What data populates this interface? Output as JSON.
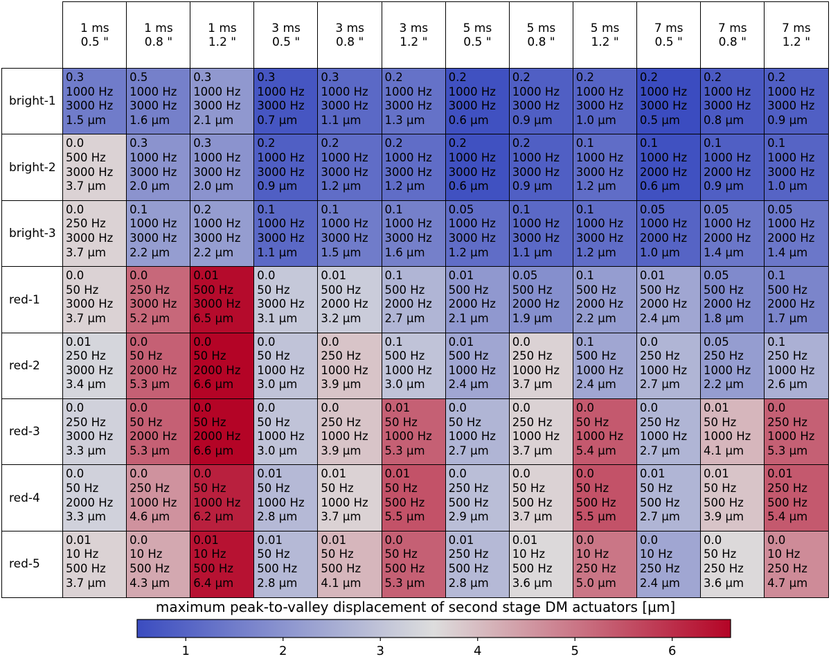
{
  "colormap": {
    "name": "coolwarm",
    "vmin": 0.5,
    "vmax": 6.6,
    "stops": [
      "#3b4cc0",
      "#dddddd",
      "#b40426"
    ]
  },
  "chart_data": {
    "type": "heatmap",
    "title": "",
    "columns": [
      {
        "exp": "1 ms",
        "seeing": "0.5 \""
      },
      {
        "exp": "1 ms",
        "seeing": "0.8 \""
      },
      {
        "exp": "1 ms",
        "seeing": "1.2 \""
      },
      {
        "exp": "3 ms",
        "seeing": "0.5 \""
      },
      {
        "exp": "3 ms",
        "seeing": "0.8 \""
      },
      {
        "exp": "3 ms",
        "seeing": "1.2 \""
      },
      {
        "exp": "5 ms",
        "seeing": "0.5 \""
      },
      {
        "exp": "5 ms",
        "seeing": "0.8 \""
      },
      {
        "exp": "5 ms",
        "seeing": "1.2 \""
      },
      {
        "exp": "7 ms",
        "seeing": "0.5 \""
      },
      {
        "exp": "7 ms",
        "seeing": "0.8 \""
      },
      {
        "exp": "7 ms",
        "seeing": "1.2 \""
      }
    ],
    "rows": [
      {
        "label": "bright-1",
        "cells": [
          {
            "gain": "0.3",
            "f1": "1000 Hz",
            "f2": "3000 Hz",
            "value": 1.5
          },
          {
            "gain": "0.5",
            "f1": "1000 Hz",
            "f2": "3000 Hz",
            "value": 1.6
          },
          {
            "gain": "0.3",
            "f1": "1000 Hz",
            "f2": "3000 Hz",
            "value": 2.1
          },
          {
            "gain": "0.3",
            "f1": "1000 Hz",
            "f2": "3000 Hz",
            "value": 0.7
          },
          {
            "gain": "0.3",
            "f1": "1000 Hz",
            "f2": "3000 Hz",
            "value": 1.1
          },
          {
            "gain": "0.2",
            "f1": "1000 Hz",
            "f2": "3000 Hz",
            "value": 1.3
          },
          {
            "gain": "0.2",
            "f1": "1000 Hz",
            "f2": "3000 Hz",
            "value": 0.6
          },
          {
            "gain": "0.2",
            "f1": "1000 Hz",
            "f2": "3000 Hz",
            "value": 0.9
          },
          {
            "gain": "0.2",
            "f1": "1000 Hz",
            "f2": "3000 Hz",
            "value": 1.0
          },
          {
            "gain": "0.2",
            "f1": "1000 Hz",
            "f2": "3000 Hz",
            "value": 0.5
          },
          {
            "gain": "0.2",
            "f1": "1000 Hz",
            "f2": "3000 Hz",
            "value": 0.8
          },
          {
            "gain": "0.2",
            "f1": "1000 Hz",
            "f2": "3000 Hz",
            "value": 0.9
          }
        ]
      },
      {
        "label": "bright-2",
        "cells": [
          {
            "gain": "0.0",
            "f1": "500 Hz",
            "f2": "3000 Hz",
            "value": 3.7
          },
          {
            "gain": "0.3",
            "f1": "1000 Hz",
            "f2": "3000 Hz",
            "value": 2.0
          },
          {
            "gain": "0.3",
            "f1": "1000 Hz",
            "f2": "3000 Hz",
            "value": 2.0
          },
          {
            "gain": "0.2",
            "f1": "1000 Hz",
            "f2": "3000 Hz",
            "value": 0.9
          },
          {
            "gain": "0.2",
            "f1": "1000 Hz",
            "f2": "3000 Hz",
            "value": 1.2
          },
          {
            "gain": "0.2",
            "f1": "1000 Hz",
            "f2": "3000 Hz",
            "value": 1.2
          },
          {
            "gain": "0.2",
            "f1": "1000 Hz",
            "f2": "3000 Hz",
            "value": 0.6
          },
          {
            "gain": "0.2",
            "f1": "1000 Hz",
            "f2": "3000 Hz",
            "value": 0.9
          },
          {
            "gain": "0.1",
            "f1": "1000 Hz",
            "f2": "3000 Hz",
            "value": 1.2
          },
          {
            "gain": "0.1",
            "f1": "1000 Hz",
            "f2": "2000 Hz",
            "value": 0.6
          },
          {
            "gain": "0.1",
            "f1": "1000 Hz",
            "f2": "2000 Hz",
            "value": 0.9
          },
          {
            "gain": "0.1",
            "f1": "1000 Hz",
            "f2": "3000 Hz",
            "value": 1.0
          }
        ]
      },
      {
        "label": "bright-3",
        "cells": [
          {
            "gain": "0.0",
            "f1": "250 Hz",
            "f2": "3000 Hz",
            "value": 3.7
          },
          {
            "gain": "0.1",
            "f1": "1000 Hz",
            "f2": "3000 Hz",
            "value": 2.2
          },
          {
            "gain": "0.2",
            "f1": "1000 Hz",
            "f2": "3000 Hz",
            "value": 2.2
          },
          {
            "gain": "0.1",
            "f1": "1000 Hz",
            "f2": "3000 Hz",
            "value": 1.1
          },
          {
            "gain": "0.1",
            "f1": "1000 Hz",
            "f2": "3000 Hz",
            "value": 1.5
          },
          {
            "gain": "0.1",
            "f1": "1000 Hz",
            "f2": "3000 Hz",
            "value": 1.6
          },
          {
            "gain": "0.05",
            "f1": "1000 Hz",
            "f2": "3000 Hz",
            "value": 1.2
          },
          {
            "gain": "0.1",
            "f1": "1000 Hz",
            "f2": "3000 Hz",
            "value": 1.1
          },
          {
            "gain": "0.1",
            "f1": "1000 Hz",
            "f2": "3000 Hz",
            "value": 1.2
          },
          {
            "gain": "0.05",
            "f1": "1000 Hz",
            "f2": "2000 Hz",
            "value": 1.0
          },
          {
            "gain": "0.05",
            "f1": "1000 Hz",
            "f2": "2000 Hz",
            "value": 1.4
          },
          {
            "gain": "0.05",
            "f1": "1000 Hz",
            "f2": "2000 Hz",
            "value": 1.4
          }
        ]
      },
      {
        "label": "red-1",
        "cells": [
          {
            "gain": "0.0",
            "f1": "50 Hz",
            "f2": "3000 Hz",
            "value": 3.7
          },
          {
            "gain": "0.0",
            "f1": "250 Hz",
            "f2": "3000 Hz",
            "value": 5.2
          },
          {
            "gain": "0.01",
            "f1": "500 Hz",
            "f2": "3000 Hz",
            "value": 6.5
          },
          {
            "gain": "0.0",
            "f1": "50 Hz",
            "f2": "3000 Hz",
            "value": 3.1
          },
          {
            "gain": "0.01",
            "f1": "500 Hz",
            "f2": "2000 Hz",
            "value": 3.2
          },
          {
            "gain": "0.1",
            "f1": "500 Hz",
            "f2": "2000 Hz",
            "value": 2.7
          },
          {
            "gain": "0.01",
            "f1": "500 Hz",
            "f2": "2000 Hz",
            "value": 2.1
          },
          {
            "gain": "0.05",
            "f1": "500 Hz",
            "f2": "2000 Hz",
            "value": 1.9
          },
          {
            "gain": "0.1",
            "f1": "500 Hz",
            "f2": "2000 Hz",
            "value": 2.2
          },
          {
            "gain": "0.01",
            "f1": "500 Hz",
            "f2": "2000 Hz",
            "value": 2.4
          },
          {
            "gain": "0.05",
            "f1": "500 Hz",
            "f2": "2000 Hz",
            "value": 1.8
          },
          {
            "gain": "0.1",
            "f1": "500 Hz",
            "f2": "2000 Hz",
            "value": 1.7
          }
        ]
      },
      {
        "label": "red-2",
        "cells": [
          {
            "gain": "0.01",
            "f1": "250 Hz",
            "f2": "3000 Hz",
            "value": 3.4
          },
          {
            "gain": "0.0",
            "f1": "50 Hz",
            "f2": "2000 Hz",
            "value": 5.3
          },
          {
            "gain": "0.0",
            "f1": "50 Hz",
            "f2": "2000 Hz",
            "value": 6.6
          },
          {
            "gain": "0.0",
            "f1": "50 Hz",
            "f2": "1000 Hz",
            "value": 3.0
          },
          {
            "gain": "0.0",
            "f1": "250 Hz",
            "f2": "1000 Hz",
            "value": 3.9
          },
          {
            "gain": "0.1",
            "f1": "500 Hz",
            "f2": "1000 Hz",
            "value": 3.0
          },
          {
            "gain": "0.01",
            "f1": "500 Hz",
            "f2": "1000 Hz",
            "value": 2.4
          },
          {
            "gain": "0.0",
            "f1": "250 Hz",
            "f2": "1000 Hz",
            "value": 3.7
          },
          {
            "gain": "0.1",
            "f1": "500 Hz",
            "f2": "1000 Hz",
            "value": 2.4
          },
          {
            "gain": "0.0",
            "f1": "250 Hz",
            "f2": "1000 Hz",
            "value": 2.7
          },
          {
            "gain": "0.05",
            "f1": "250 Hz",
            "f2": "1000 Hz",
            "value": 2.2
          },
          {
            "gain": "0.1",
            "f1": "250 Hz",
            "f2": "1000 Hz",
            "value": 2.6
          }
        ]
      },
      {
        "label": "red-3",
        "cells": [
          {
            "gain": "0.0",
            "f1": "250 Hz",
            "f2": "3000 Hz",
            "value": 3.3
          },
          {
            "gain": "0.0",
            "f1": "50 Hz",
            "f2": "2000 Hz",
            "value": 5.3
          },
          {
            "gain": "0.0",
            "f1": "50 Hz",
            "f2": "2000 Hz",
            "value": 6.6
          },
          {
            "gain": "0.0",
            "f1": "50 Hz",
            "f2": "1000 Hz",
            "value": 3.0
          },
          {
            "gain": "0.0",
            "f1": "250 Hz",
            "f2": "1000 Hz",
            "value": 3.9
          },
          {
            "gain": "0.01",
            "f1": "50 Hz",
            "f2": "1000 Hz",
            "value": 5.3
          },
          {
            "gain": "0.0",
            "f1": "50 Hz",
            "f2": "1000 Hz",
            "value": 2.7
          },
          {
            "gain": "0.0",
            "f1": "250 Hz",
            "f2": "1000 Hz",
            "value": 3.7
          },
          {
            "gain": "0.0",
            "f1": "50 Hz",
            "f2": "1000 Hz",
            "value": 5.4
          },
          {
            "gain": "0.0",
            "f1": "250 Hz",
            "f2": "1000 Hz",
            "value": 2.7
          },
          {
            "gain": "0.01",
            "f1": "50 Hz",
            "f2": "1000 Hz",
            "value": 4.1
          },
          {
            "gain": "0.0",
            "f1": "250 Hz",
            "f2": "1000 Hz",
            "value": 5.3
          }
        ]
      },
      {
        "label": "red-4",
        "cells": [
          {
            "gain": "0.0",
            "f1": "50 Hz",
            "f2": "2000 Hz",
            "value": 3.3
          },
          {
            "gain": "0.0",
            "f1": "250 Hz",
            "f2": "1000 Hz",
            "value": 4.6
          },
          {
            "gain": "0.0",
            "f1": "50 Hz",
            "f2": "1000 Hz",
            "value": 6.2
          },
          {
            "gain": "0.01",
            "f1": "50 Hz",
            "f2": "1000 Hz",
            "value": 2.8
          },
          {
            "gain": "0.01",
            "f1": "50 Hz",
            "f2": "1000 Hz",
            "value": 3.7
          },
          {
            "gain": "0.01",
            "f1": "50 Hz",
            "f2": "500 Hz",
            "value": 5.5
          },
          {
            "gain": "0.0",
            "f1": "250 Hz",
            "f2": "500 Hz",
            "value": 2.9
          },
          {
            "gain": "0.0",
            "f1": "50 Hz",
            "f2": "500 Hz",
            "value": 3.7
          },
          {
            "gain": "0.0",
            "f1": "50 Hz",
            "f2": "500 Hz",
            "value": 5.5
          },
          {
            "gain": "0.01",
            "f1": "50 Hz",
            "f2": "500 Hz",
            "value": 2.7
          },
          {
            "gain": "0.01",
            "f1": "50 Hz",
            "f2": "500 Hz",
            "value": 3.9
          },
          {
            "gain": "0.01",
            "f1": "250 Hz",
            "f2": "500 Hz",
            "value": 5.4
          }
        ]
      },
      {
        "label": "red-5",
        "cells": [
          {
            "gain": "0.01",
            "f1": "10 Hz",
            "f2": "500 Hz",
            "value": 3.7
          },
          {
            "gain": "0.0",
            "f1": "10 Hz",
            "f2": "500 Hz",
            "value": 4.3
          },
          {
            "gain": "0.01",
            "f1": "10 Hz",
            "f2": "500 Hz",
            "value": 6.4
          },
          {
            "gain": "0.01",
            "f1": "50 Hz",
            "f2": "500 Hz",
            "value": 2.8
          },
          {
            "gain": "0.01",
            "f1": "50 Hz",
            "f2": "500 Hz",
            "value": 4.1
          },
          {
            "gain": "0.0",
            "f1": "50 Hz",
            "f2": "500 Hz",
            "value": 5.3
          },
          {
            "gain": "0.01",
            "f1": "250 Hz",
            "f2": "500 Hz",
            "value": 2.8
          },
          {
            "gain": "0.01",
            "f1": "10 Hz",
            "f2": "500 Hz",
            "value": 3.6
          },
          {
            "gain": "0.0",
            "f1": "10 Hz",
            "f2": "250 Hz",
            "value": 5.0
          },
          {
            "gain": "0.0",
            "f1": "10 Hz",
            "f2": "250 Hz",
            "value": 2.4
          },
          {
            "gain": "0.0",
            "f1": "50 Hz",
            "f2": "250 Hz",
            "value": 3.6
          },
          {
            "gain": "0.0",
            "f1": "10 Hz",
            "f2": "250 Hz",
            "value": 4.7
          }
        ]
      }
    ],
    "value_unit": "µm",
    "colorbar": {
      "label": "maximum peak-to-valley displacement of second stage DM actuators [µm]",
      "ticks": [
        1,
        2,
        3,
        4,
        5,
        6
      ],
      "range": [
        0.5,
        6.6
      ]
    }
  }
}
